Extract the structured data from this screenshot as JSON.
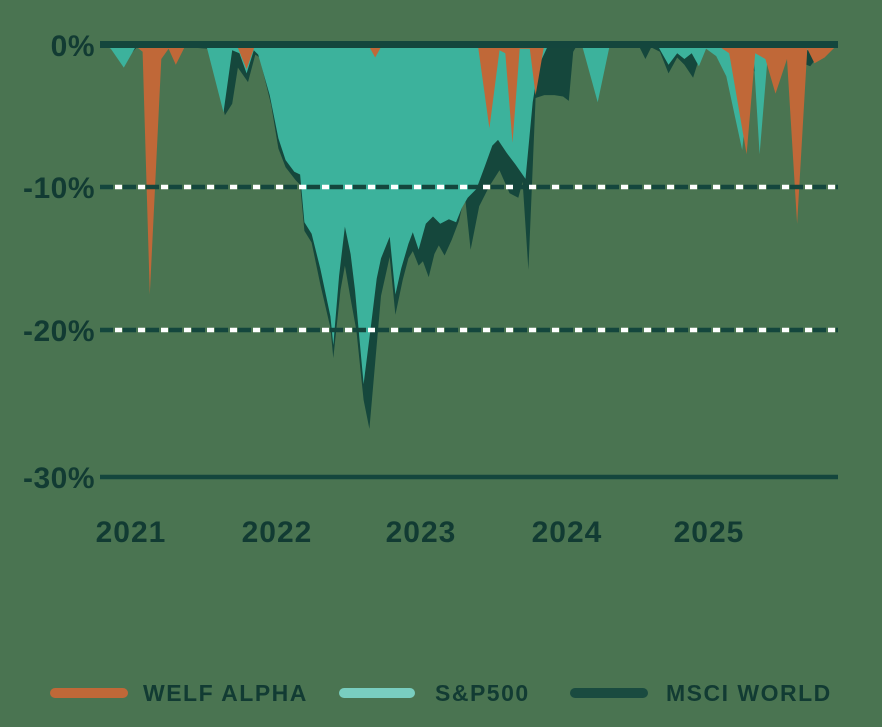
{
  "chart_data": {
    "type": "area",
    "description": "Drawdown comparison chart (underwater plot), values in percent below previous peak",
    "x_axis": {
      "ticks": [
        "2021",
        "2022",
        "2023",
        "2024",
        "2025"
      ],
      "tick_values": [
        2021,
        2022,
        2023,
        2024,
        2025
      ],
      "range": [
        2020.81,
        2025.89
      ]
    },
    "y_axis": {
      "ticks": [
        "0%",
        "-10%",
        "-20%",
        "-30%"
      ],
      "tick_values": [
        0,
        -10,
        -20,
        -30
      ],
      "unit": "%",
      "range": [
        -30,
        0
      ]
    },
    "grid": {
      "dashed_lines_at": [
        -10,
        -20
      ],
      "solid_line_top": 0,
      "solid_line_bottom": -30
    },
    "legend_position": "bottom",
    "draw_order": [
      "MSCI WORLD",
      "S&P500",
      "WELF ALPHA"
    ],
    "series": [
      {
        "name": "MSCI WORLD",
        "color": "#15473C",
        "points": [
          [
            2020.81,
            0
          ],
          [
            2020.92,
            -0.4
          ],
          [
            2020.96,
            -1.1
          ],
          [
            2021.04,
            -0.2
          ],
          [
            2021.1,
            0
          ],
          [
            2021.54,
            -0.3
          ],
          [
            2021.65,
            -4.9
          ],
          [
            2021.7,
            -4.1
          ],
          [
            2021.74,
            -1.6
          ],
          [
            2021.81,
            -2.6
          ],
          [
            2021.86,
            -0.7
          ],
          [
            2021.89,
            -0.9
          ],
          [
            2021.97,
            -4.2
          ],
          [
            2022.02,
            -7.2
          ],
          [
            2022.07,
            -8.5
          ],
          [
            2022.14,
            -9.4
          ],
          [
            2022.17,
            -9.7
          ],
          [
            2022.2,
            -12.9
          ],
          [
            2022.25,
            -13.7
          ],
          [
            2022.31,
            -16.6
          ],
          [
            2022.38,
            -19.6
          ],
          [
            2022.4,
            -21.7
          ],
          [
            2022.45,
            -17.0
          ],
          [
            2022.48,
            -15.3
          ],
          [
            2022.52,
            -17.6
          ],
          [
            2022.56,
            -19.8
          ],
          [
            2022.61,
            -24.6
          ],
          [
            2022.65,
            -26.6
          ],
          [
            2022.69,
            -22.0
          ],
          [
            2022.73,
            -17.4
          ],
          [
            2022.79,
            -14.7
          ],
          [
            2022.83,
            -18.7
          ],
          [
            2022.88,
            -16.3
          ],
          [
            2022.92,
            -14.8
          ],
          [
            2022.95,
            -14.3
          ],
          [
            2022.99,
            -15.3
          ],
          [
            2023.02,
            -15.0
          ],
          [
            2023.06,
            -16.1
          ],
          [
            2023.1,
            -14.5
          ],
          [
            2023.13,
            -13.9
          ],
          [
            2023.17,
            -14.6
          ],
          [
            2023.22,
            -13.5
          ],
          [
            2023.27,
            -12.2
          ],
          [
            2023.31,
            -10.4
          ],
          [
            2023.35,
            -14.2
          ],
          [
            2023.41,
            -11.2
          ],
          [
            2023.48,
            -9.8
          ],
          [
            2023.55,
            -8.7
          ],
          [
            2023.62,
            -10.3
          ],
          [
            2023.68,
            -10.6
          ],
          [
            2023.71,
            -9.5
          ],
          [
            2023.75,
            -15.6
          ],
          [
            2023.8,
            -3.7
          ],
          [
            2023.86,
            -3.5
          ],
          [
            2023.93,
            -3.5
          ],
          [
            2023.99,
            -3.6
          ],
          [
            2024.03,
            -3.9
          ],
          [
            2024.06,
            -0.5
          ],
          [
            2024.09,
            0
          ],
          [
            2024.51,
            0
          ],
          [
            2024.56,
            -1.0
          ],
          [
            2024.6,
            -0.2
          ],
          [
            2024.66,
            -0.5
          ],
          [
            2024.72,
            -2.0
          ],
          [
            2024.78,
            -0.9
          ],
          [
            2024.83,
            -1.4
          ],
          [
            2024.89,
            -2.3
          ],
          [
            2024.94,
            -0.7
          ],
          [
            2024.99,
            -0.2
          ],
          [
            2025.08,
            -0.7
          ],
          [
            2025.16,
            -1.7
          ],
          [
            2025.22,
            -2.7
          ],
          [
            2025.28,
            -1.3
          ],
          [
            2025.34,
            -2.3
          ],
          [
            2025.41,
            -0.7
          ],
          [
            2025.55,
            -0.9
          ],
          [
            2025.7,
            -1.5
          ],
          [
            2025.77,
            -0.6
          ],
          [
            2025.89,
            0
          ]
        ]
      },
      {
        "name": "S&P500",
        "color": "#3CB29C",
        "points": [
          [
            2020.81,
            0
          ],
          [
            2020.86,
            -0.3
          ],
          [
            2020.95,
            -1.6
          ],
          [
            2021.03,
            -0.2
          ],
          [
            2021.09,
            0
          ],
          [
            2021.52,
            0
          ],
          [
            2021.64,
            -4.7
          ],
          [
            2021.7,
            -0.4
          ],
          [
            2021.75,
            -0.6
          ],
          [
            2021.8,
            -2.0
          ],
          [
            2021.85,
            -0.4
          ],
          [
            2021.88,
            -0.7
          ],
          [
            2021.96,
            -3.5
          ],
          [
            2022.02,
            -6.5
          ],
          [
            2022.07,
            -8.0
          ],
          [
            2022.13,
            -8.8
          ],
          [
            2022.17,
            -9.0
          ],
          [
            2022.2,
            -12.3
          ],
          [
            2022.25,
            -13.1
          ],
          [
            2022.31,
            -15.5
          ],
          [
            2022.38,
            -18.8
          ],
          [
            2022.4,
            -20.8
          ],
          [
            2022.44,
            -16.0
          ],
          [
            2022.48,
            -12.6
          ],
          [
            2022.52,
            -14.5
          ],
          [
            2022.55,
            -17.0
          ],
          [
            2022.61,
            -23.5
          ],
          [
            2022.66,
            -19.5
          ],
          [
            2022.7,
            -16.2
          ],
          [
            2022.73,
            -14.8
          ],
          [
            2022.79,
            -13.3
          ],
          [
            2022.83,
            -17.3
          ],
          [
            2022.87,
            -15.5
          ],
          [
            2022.92,
            -13.8
          ],
          [
            2022.95,
            -13.0
          ],
          [
            2022.99,
            -14.2
          ],
          [
            2023.04,
            -12.4
          ],
          [
            2023.09,
            -11.9
          ],
          [
            2023.14,
            -12.4
          ],
          [
            2023.2,
            -12.1
          ],
          [
            2023.25,
            -12.3
          ],
          [
            2023.29,
            -11.3
          ],
          [
            2023.33,
            -10.6
          ],
          [
            2023.39,
            -10.0
          ],
          [
            2023.45,
            -8.4
          ],
          [
            2023.5,
            -7.0
          ],
          [
            2023.54,
            -6.6
          ],
          [
            2023.6,
            -7.5
          ],
          [
            2023.66,
            -8.3
          ],
          [
            2023.73,
            -9.3
          ],
          [
            2023.78,
            -4.0
          ],
          [
            2023.82,
            -1.5
          ],
          [
            2023.88,
            -0.2
          ],
          [
            2023.94,
            0
          ],
          [
            2024.12,
            0
          ],
          [
            2024.23,
            -4.0
          ],
          [
            2024.31,
            -0.2
          ],
          [
            2024.36,
            0
          ],
          [
            2024.64,
            0
          ],
          [
            2024.72,
            -1.4
          ],
          [
            2024.78,
            -0.6
          ],
          [
            2024.83,
            -1.0
          ],
          [
            2024.88,
            -0.6
          ],
          [
            2024.93,
            -1.5
          ],
          [
            2024.98,
            -0.3
          ],
          [
            2025.05,
            -0.8
          ],
          [
            2025.12,
            -2.2
          ],
          [
            2025.18,
            -5.0
          ],
          [
            2025.23,
            -7.3
          ],
          [
            2025.28,
            -2.2
          ],
          [
            2025.31,
            -1.0
          ],
          [
            2025.35,
            -7.6
          ],
          [
            2025.41,
            -0.4
          ],
          [
            2025.5,
            -0.6
          ],
          [
            2025.58,
            -1.1
          ],
          [
            2025.68,
            -0.4
          ],
          [
            2025.89,
            0
          ]
        ]
      },
      {
        "name": "WELF ALPHA",
        "color": "#C06838",
        "points": [
          [
            2020.81,
            0
          ],
          [
            2021.03,
            -0.1
          ],
          [
            2021.08,
            -0.5
          ],
          [
            2021.13,
            -17.3
          ],
          [
            2021.21,
            -1.0
          ],
          [
            2021.26,
            -0.3
          ],
          [
            2021.31,
            -1.4
          ],
          [
            2021.38,
            0
          ],
          [
            2021.73,
            0
          ],
          [
            2021.8,
            -1.7
          ],
          [
            2021.86,
            0
          ],
          [
            2022.64,
            0
          ],
          [
            2022.69,
            -0.9
          ],
          [
            2022.74,
            0
          ],
          [
            2023.4,
            0
          ],
          [
            2023.48,
            -5.8
          ],
          [
            2023.55,
            -0.4
          ],
          [
            2023.59,
            -0.6
          ],
          [
            2023.64,
            -6.8
          ],
          [
            2023.69,
            -0.3
          ],
          [
            2023.76,
            -0.3
          ],
          [
            2023.8,
            -3.5
          ],
          [
            2023.86,
            0
          ],
          [
            2025.05,
            0
          ],
          [
            2025.14,
            -0.6
          ],
          [
            2025.26,
            -7.6
          ],
          [
            2025.32,
            -0.6
          ],
          [
            2025.39,
            -1.0
          ],
          [
            2025.46,
            -3.4
          ],
          [
            2025.54,
            -1.0
          ],
          [
            2025.61,
            -12.4
          ],
          [
            2025.68,
            -0.3
          ],
          [
            2025.73,
            -1.3
          ],
          [
            2025.8,
            -0.9
          ],
          [
            2025.89,
            0
          ]
        ]
      }
    ]
  },
  "legend": {
    "items": [
      {
        "label": "WELF ALPHA",
        "swatch_color": "#C06838"
      },
      {
        "label": "S&P500",
        "swatch_color": "#79CEC0"
      },
      {
        "label": "MSCI WORLD",
        "swatch_color": "#1A4B40"
      }
    ]
  },
  "colors": {
    "background": "#4A7451",
    "axis_line": "#14463D",
    "grid_dash_dark": "#14463D",
    "grid_dash_white": "#FFFFFF",
    "text": "#123B33"
  }
}
